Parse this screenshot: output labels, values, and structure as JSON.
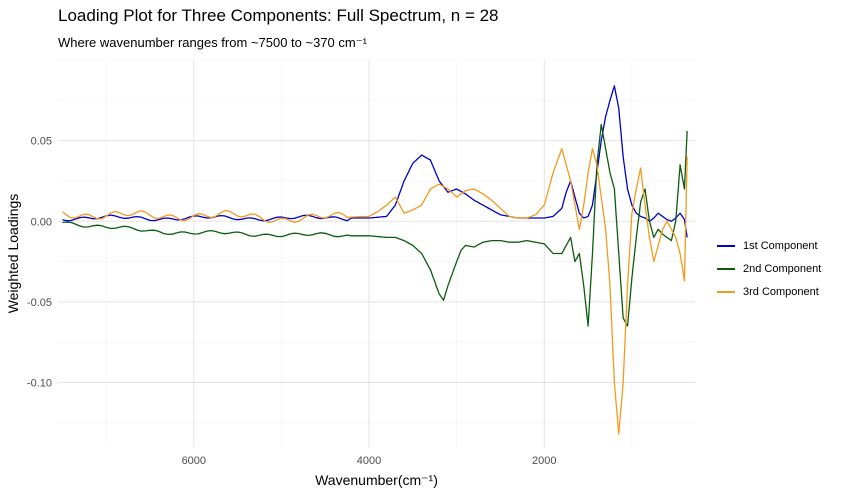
{
  "chart_data": {
    "type": "line",
    "title": "Loading Plot for Three Components: Full Spectrum, n = 28",
    "subtitle": "Where wavenumber ranges from ~7500 to ~370 cm⁻¹",
    "xlabel": "Wavenumber(cm⁻¹)",
    "ylabel": "Weighted Loadings",
    "x_reversed": true,
    "xlim": [
      7550,
      280
    ],
    "ylim": [
      -0.14,
      0.1
    ],
    "x_ticks": [
      6000,
      4000,
      2000
    ],
    "x_tick_labels": [
      "6000",
      "4000",
      "2000"
    ],
    "y_ticks": [
      0.05,
      0.0,
      -0.05,
      -0.1
    ],
    "y_tick_labels": [
      "0.05",
      "0.00",
      "-0.05",
      "-0.10"
    ],
    "grid": true,
    "legend_position": "right",
    "series": [
      {
        "name": "1st Component",
        "color": "#0000cc",
        "x": [
          7500,
          7000,
          6500,
          6000,
          5500,
          5000,
          4500,
          4000,
          3800,
          3700,
          3600,
          3500,
          3400,
          3300,
          3200,
          3100,
          3000,
          2900,
          2800,
          2700,
          2600,
          2500,
          2400,
          2300,
          2200,
          2100,
          2000,
          1900,
          1800,
          1750,
          1700,
          1650,
          1600,
          1550,
          1500,
          1450,
          1400,
          1350,
          1300,
          1250,
          1200,
          1150,
          1100,
          1050,
          1000,
          950,
          900,
          850,
          800,
          750,
          700,
          650,
          600,
          550,
          500,
          450,
          400,
          370
        ],
        "y": [
          0.002,
          0.002,
          0.002,
          0.002,
          0.002,
          0.002,
          0.002,
          0.002,
          0.003,
          0.01,
          0.025,
          0.036,
          0.041,
          0.038,
          0.025,
          0.018,
          0.02,
          0.017,
          0.013,
          0.01,
          0.007,
          0.004,
          0.003,
          0.002,
          0.002,
          0.002,
          0.002,
          0.003,
          0.008,
          0.018,
          0.025,
          0.015,
          0.005,
          0.002,
          0.003,
          0.01,
          0.03,
          0.05,
          0.065,
          0.075,
          0.084,
          0.07,
          0.04,
          0.02,
          0.01,
          0.005,
          0.003,
          0.002,
          0.0,
          0.002,
          0.005,
          0.003,
          0.001,
          0.0,
          0.002,
          0.005,
          0.001,
          -0.01
        ]
      },
      {
        "name": "2nd Component",
        "color": "#0d5c0d",
        "x": [
          7500,
          7000,
          6500,
          6000,
          5500,
          5000,
          4500,
          4000,
          3800,
          3700,
          3600,
          3500,
          3400,
          3300,
          3200,
          3150,
          3100,
          3000,
          2950,
          2900,
          2800,
          2700,
          2600,
          2500,
          2400,
          2300,
          2200,
          2100,
          2000,
          1900,
          1800,
          1750,
          1700,
          1650,
          1600,
          1550,
          1500,
          1450,
          1400,
          1350,
          1300,
          1250,
          1200,
          1150,
          1100,
          1050,
          1000,
          950,
          900,
          850,
          800,
          750,
          700,
          650,
          600,
          550,
          500,
          450,
          400,
          370
        ],
        "y": [
          0.0,
          -0.004,
          -0.006,
          -0.007,
          -0.008,
          -0.008,
          -0.009,
          -0.009,
          -0.01,
          -0.01,
          -0.012,
          -0.015,
          -0.02,
          -0.03,
          -0.045,
          -0.049,
          -0.04,
          -0.025,
          -0.018,
          -0.015,
          -0.016,
          -0.013,
          -0.012,
          -0.012,
          -0.013,
          -0.013,
          -0.012,
          -0.013,
          -0.014,
          -0.02,
          -0.02,
          -0.015,
          -0.01,
          -0.025,
          -0.02,
          -0.04,
          -0.065,
          -0.02,
          0.035,
          0.06,
          0.045,
          0.03,
          0.02,
          -0.02,
          -0.06,
          -0.065,
          -0.035,
          -0.01,
          0.012,
          0.02,
          0.0,
          -0.01,
          -0.005,
          -0.008,
          -0.01,
          -0.012,
          0.0,
          0.035,
          0.02,
          0.056
        ]
      },
      {
        "name": "3rd Component",
        "color": "#f39a1c",
        "x": [
          7500,
          7000,
          6500,
          6000,
          5500,
          5000,
          4500,
          4000,
          3900,
          3800,
          3700,
          3650,
          3600,
          3500,
          3400,
          3300,
          3200,
          3100,
          3000,
          2900,
          2800,
          2700,
          2600,
          2500,
          2400,
          2300,
          2200,
          2100,
          2000,
          1900,
          1800,
          1750,
          1700,
          1650,
          1600,
          1550,
          1500,
          1450,
          1400,
          1350,
          1300,
          1250,
          1200,
          1150,
          1100,
          1050,
          1000,
          950,
          900,
          850,
          800,
          750,
          700,
          650,
          600,
          550,
          500,
          450,
          400,
          370
        ],
        "y": [
          0.005,
          0.004,
          0.003,
          0.004,
          0.003,
          0.002,
          0.002,
          0.003,
          0.006,
          0.01,
          0.015,
          0.01,
          0.005,
          0.007,
          0.01,
          0.02,
          0.023,
          0.02,
          0.015,
          0.019,
          0.02,
          0.017,
          0.013,
          0.008,
          0.003,
          0.002,
          0.002,
          0.004,
          0.01,
          0.03,
          0.045,
          0.035,
          0.025,
          0.01,
          -0.005,
          0.01,
          0.03,
          0.045,
          0.035,
          0.015,
          -0.005,
          -0.04,
          -0.1,
          -0.132,
          -0.1,
          -0.04,
          0.005,
          0.02,
          0.033,
          0.01,
          -0.01,
          -0.025,
          -0.015,
          -0.005,
          0.0,
          -0.005,
          -0.01,
          -0.02,
          -0.037,
          0.04
        ]
      }
    ]
  }
}
